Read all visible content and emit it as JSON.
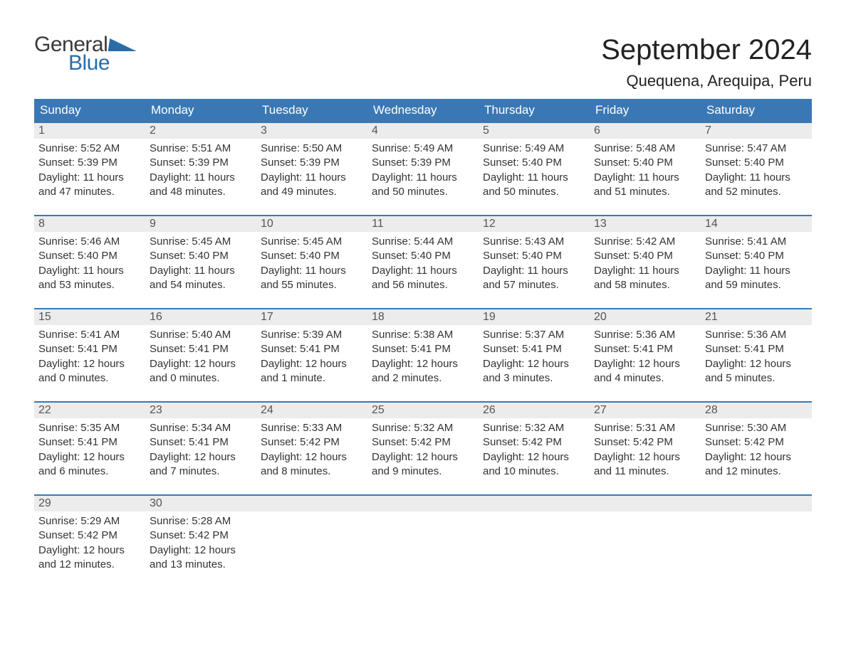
{
  "logo": {
    "general": "General",
    "blue": "Blue"
  },
  "title": {
    "month": "September 2024",
    "location": "Quequena, Arequipa, Peru"
  },
  "colors": {
    "header_bg": "#3a78b5",
    "header_text": "#ffffff",
    "daynum_bg": "#ececec",
    "daynum_border_top": "#3a78b5",
    "body_text": "#333333",
    "page_bg": "#ffffff",
    "logo_gray": "#3a3a3a",
    "logo_blue": "#2a6ca8"
  },
  "weekdays": [
    "Sunday",
    "Monday",
    "Tuesday",
    "Wednesday",
    "Thursday",
    "Friday",
    "Saturday"
  ],
  "weeks": [
    [
      {
        "day": "1",
        "sunrise": "Sunrise: 5:52 AM",
        "sunset": "Sunset: 5:39 PM",
        "daylight1": "Daylight: 11 hours",
        "daylight2": "and 47 minutes."
      },
      {
        "day": "2",
        "sunrise": "Sunrise: 5:51 AM",
        "sunset": "Sunset: 5:39 PM",
        "daylight1": "Daylight: 11 hours",
        "daylight2": "and 48 minutes."
      },
      {
        "day": "3",
        "sunrise": "Sunrise: 5:50 AM",
        "sunset": "Sunset: 5:39 PM",
        "daylight1": "Daylight: 11 hours",
        "daylight2": "and 49 minutes."
      },
      {
        "day": "4",
        "sunrise": "Sunrise: 5:49 AM",
        "sunset": "Sunset: 5:39 PM",
        "daylight1": "Daylight: 11 hours",
        "daylight2": "and 50 minutes."
      },
      {
        "day": "5",
        "sunrise": "Sunrise: 5:49 AM",
        "sunset": "Sunset: 5:40 PM",
        "daylight1": "Daylight: 11 hours",
        "daylight2": "and 50 minutes."
      },
      {
        "day": "6",
        "sunrise": "Sunrise: 5:48 AM",
        "sunset": "Sunset: 5:40 PM",
        "daylight1": "Daylight: 11 hours",
        "daylight2": "and 51 minutes."
      },
      {
        "day": "7",
        "sunrise": "Sunrise: 5:47 AM",
        "sunset": "Sunset: 5:40 PM",
        "daylight1": "Daylight: 11 hours",
        "daylight2": "and 52 minutes."
      }
    ],
    [
      {
        "day": "8",
        "sunrise": "Sunrise: 5:46 AM",
        "sunset": "Sunset: 5:40 PM",
        "daylight1": "Daylight: 11 hours",
        "daylight2": "and 53 minutes."
      },
      {
        "day": "9",
        "sunrise": "Sunrise: 5:45 AM",
        "sunset": "Sunset: 5:40 PM",
        "daylight1": "Daylight: 11 hours",
        "daylight2": "and 54 minutes."
      },
      {
        "day": "10",
        "sunrise": "Sunrise: 5:45 AM",
        "sunset": "Sunset: 5:40 PM",
        "daylight1": "Daylight: 11 hours",
        "daylight2": "and 55 minutes."
      },
      {
        "day": "11",
        "sunrise": "Sunrise: 5:44 AM",
        "sunset": "Sunset: 5:40 PM",
        "daylight1": "Daylight: 11 hours",
        "daylight2": "and 56 minutes."
      },
      {
        "day": "12",
        "sunrise": "Sunrise: 5:43 AM",
        "sunset": "Sunset: 5:40 PM",
        "daylight1": "Daylight: 11 hours",
        "daylight2": "and 57 minutes."
      },
      {
        "day": "13",
        "sunrise": "Sunrise: 5:42 AM",
        "sunset": "Sunset: 5:40 PM",
        "daylight1": "Daylight: 11 hours",
        "daylight2": "and 58 minutes."
      },
      {
        "day": "14",
        "sunrise": "Sunrise: 5:41 AM",
        "sunset": "Sunset: 5:40 PM",
        "daylight1": "Daylight: 11 hours",
        "daylight2": "and 59 minutes."
      }
    ],
    [
      {
        "day": "15",
        "sunrise": "Sunrise: 5:41 AM",
        "sunset": "Sunset: 5:41 PM",
        "daylight1": "Daylight: 12 hours",
        "daylight2": "and 0 minutes."
      },
      {
        "day": "16",
        "sunrise": "Sunrise: 5:40 AM",
        "sunset": "Sunset: 5:41 PM",
        "daylight1": "Daylight: 12 hours",
        "daylight2": "and 0 minutes."
      },
      {
        "day": "17",
        "sunrise": "Sunrise: 5:39 AM",
        "sunset": "Sunset: 5:41 PM",
        "daylight1": "Daylight: 12 hours",
        "daylight2": "and 1 minute."
      },
      {
        "day": "18",
        "sunrise": "Sunrise: 5:38 AM",
        "sunset": "Sunset: 5:41 PM",
        "daylight1": "Daylight: 12 hours",
        "daylight2": "and 2 minutes."
      },
      {
        "day": "19",
        "sunrise": "Sunrise: 5:37 AM",
        "sunset": "Sunset: 5:41 PM",
        "daylight1": "Daylight: 12 hours",
        "daylight2": "and 3 minutes."
      },
      {
        "day": "20",
        "sunrise": "Sunrise: 5:36 AM",
        "sunset": "Sunset: 5:41 PM",
        "daylight1": "Daylight: 12 hours",
        "daylight2": "and 4 minutes."
      },
      {
        "day": "21",
        "sunrise": "Sunrise: 5:36 AM",
        "sunset": "Sunset: 5:41 PM",
        "daylight1": "Daylight: 12 hours",
        "daylight2": "and 5 minutes."
      }
    ],
    [
      {
        "day": "22",
        "sunrise": "Sunrise: 5:35 AM",
        "sunset": "Sunset: 5:41 PM",
        "daylight1": "Daylight: 12 hours",
        "daylight2": "and 6 minutes."
      },
      {
        "day": "23",
        "sunrise": "Sunrise: 5:34 AM",
        "sunset": "Sunset: 5:41 PM",
        "daylight1": "Daylight: 12 hours",
        "daylight2": "and 7 minutes."
      },
      {
        "day": "24",
        "sunrise": "Sunrise: 5:33 AM",
        "sunset": "Sunset: 5:42 PM",
        "daylight1": "Daylight: 12 hours",
        "daylight2": "and 8 minutes."
      },
      {
        "day": "25",
        "sunrise": "Sunrise: 5:32 AM",
        "sunset": "Sunset: 5:42 PM",
        "daylight1": "Daylight: 12 hours",
        "daylight2": "and 9 minutes."
      },
      {
        "day": "26",
        "sunrise": "Sunrise: 5:32 AM",
        "sunset": "Sunset: 5:42 PM",
        "daylight1": "Daylight: 12 hours",
        "daylight2": "and 10 minutes."
      },
      {
        "day": "27",
        "sunrise": "Sunrise: 5:31 AM",
        "sunset": "Sunset: 5:42 PM",
        "daylight1": "Daylight: 12 hours",
        "daylight2": "and 11 minutes."
      },
      {
        "day": "28",
        "sunrise": "Sunrise: 5:30 AM",
        "sunset": "Sunset: 5:42 PM",
        "daylight1": "Daylight: 12 hours",
        "daylight2": "and 12 minutes."
      }
    ],
    [
      {
        "day": "29",
        "sunrise": "Sunrise: 5:29 AM",
        "sunset": "Sunset: 5:42 PM",
        "daylight1": "Daylight: 12 hours",
        "daylight2": "and 12 minutes."
      },
      {
        "day": "30",
        "sunrise": "Sunrise: 5:28 AM",
        "sunset": "Sunset: 5:42 PM",
        "daylight1": "Daylight: 12 hours",
        "daylight2": "and 13 minutes."
      },
      null,
      null,
      null,
      null,
      null
    ]
  ]
}
